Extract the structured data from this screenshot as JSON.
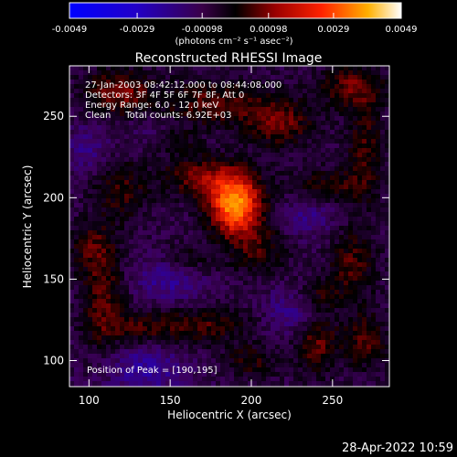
{
  "chart_data": {
    "type": "heatmap",
    "title": "Reconstructed RHESSI Image",
    "xlabel": "Heliocentric X (arcsec)",
    "ylabel": "Heliocentric Y (arcsec)",
    "xlim": [
      88,
      285
    ],
    "ylim": [
      84,
      281
    ],
    "x_ticks": [
      100,
      150,
      200,
      250
    ],
    "y_ticks": [
      100,
      150,
      200,
      250
    ],
    "colorbar": {
      "range": [
        -0.0049,
        0.0049
      ],
      "ticks": [
        "-0.0049",
        "-0.0029",
        "-0.00098",
        "0.00098",
        "0.0029",
        "0.0049"
      ],
      "label": "(photons cm⁻² s⁻¹ asec⁻²)"
    },
    "annotations": [
      "27-Jan-2003 08:42:12.000 to 08:44:08.000",
      "Detectors: 3F 4F 5F 6F 7F 8F, Att 0",
      "Energy Range: 6.0 - 12.0 keV",
      "Clean     Total counts: 6.92E+03"
    ],
    "peak_label": "Position of Peak = [190,195]",
    "peak_position": [
      190,
      195
    ],
    "blobs": [
      {
        "x": 190,
        "y": 196,
        "sx": 11,
        "sy": 13,
        "v": 0.0045
      },
      {
        "x": 168,
        "y": 213,
        "sx": 16,
        "sy": 9,
        "v": 0.0017
      },
      {
        "x": 205,
        "y": 168,
        "sx": 13,
        "sy": 11,
        "v": 0.0012
      },
      {
        "x": 118,
        "y": 265,
        "sx": 14,
        "sy": 10,
        "v": 0.0018
      },
      {
        "x": 178,
        "y": 258,
        "sx": 26,
        "sy": 10,
        "v": 0.0015
      },
      {
        "x": 218,
        "y": 245,
        "sx": 14,
        "sy": 10,
        "v": 0.0016
      },
      {
        "x": 262,
        "y": 268,
        "sx": 14,
        "sy": 9,
        "v": 0.0016
      },
      {
        "x": 270,
        "y": 230,
        "sx": 8,
        "sy": 22,
        "v": 0.0013
      },
      {
        "x": 245,
        "y": 207,
        "sx": 18,
        "sy": 8,
        "v": 0.0012
      },
      {
        "x": 262,
        "y": 158,
        "sx": 10,
        "sy": 16,
        "v": 0.0014
      },
      {
        "x": 120,
        "y": 205,
        "sx": 12,
        "sy": 14,
        "v": 0.0012
      },
      {
        "x": 102,
        "y": 170,
        "sx": 10,
        "sy": 10,
        "v": 0.0011
      },
      {
        "x": 108,
        "y": 140,
        "sx": 9,
        "sy": 22,
        "v": 0.0015
      },
      {
        "x": 130,
        "y": 120,
        "sx": 16,
        "sy": 7,
        "v": 0.0012
      },
      {
        "x": 172,
        "y": 122,
        "sx": 20,
        "sy": 8,
        "v": 0.0013
      },
      {
        "x": 200,
        "y": 100,
        "sx": 12,
        "sy": 7,
        "v": 0.0011
      },
      {
        "x": 240,
        "y": 110,
        "sx": 9,
        "sy": 13,
        "v": 0.0016
      },
      {
        "x": 270,
        "y": 112,
        "sx": 10,
        "sy": 12,
        "v": 0.0014
      },
      {
        "x": 160,
        "y": 162,
        "sx": 11,
        "sy": 7,
        "v": 0.001
      },
      {
        "x": 240,
        "y": 140,
        "sx": 9,
        "sy": 7,
        "v": 0.001
      },
      {
        "x": 150,
        "y": 235,
        "sx": 10,
        "sy": 6,
        "v": 0.001
      },
      {
        "x": 150,
        "y": 150,
        "sx": 14,
        "sy": 10,
        "v": -0.0012
      },
      {
        "x": 225,
        "y": 130,
        "sx": 12,
        "sy": 10,
        "v": -0.001
      },
      {
        "x": 135,
        "y": 95,
        "sx": 16,
        "sy": 10,
        "v": -0.0013
      },
      {
        "x": 235,
        "y": 190,
        "sx": 12,
        "sy": 10,
        "v": -0.0009
      },
      {
        "x": 100,
        "y": 230,
        "sx": 10,
        "sy": 10,
        "v": -0.0009
      },
      {
        "x": 140,
        "y": 240,
        "sx": 10,
        "sy": 8,
        "v": -0.0008
      }
    ]
  },
  "footer": {
    "timestamp": "28-Apr-2022 10:59"
  }
}
